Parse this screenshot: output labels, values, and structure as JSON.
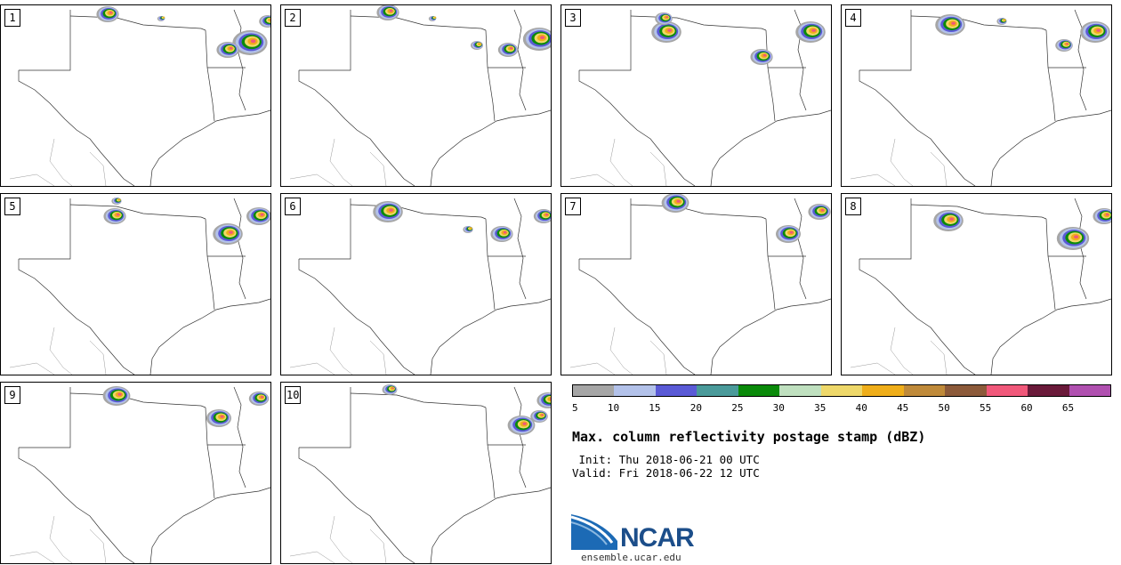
{
  "panels": [
    {
      "label": "1"
    },
    {
      "label": "2"
    },
    {
      "label": "3"
    },
    {
      "label": "4"
    },
    {
      "label": "5"
    },
    {
      "label": "6"
    },
    {
      "label": "7"
    },
    {
      "label": "8"
    },
    {
      "label": "9"
    },
    {
      "label": "10"
    }
  ],
  "colorbar": {
    "colors": [
      "#a6a6a6",
      "#b3c2ea",
      "#5a5ad6",
      "#4a9a9a",
      "#0a8a0a",
      "#bfe0bf",
      "#eed86a",
      "#efae1a",
      "#bf8a3a",
      "#8c5a3a",
      "#f0587a",
      "#6a1a3a",
      "#b050b0"
    ],
    "ticks": [
      "5",
      "10",
      "15",
      "20",
      "25",
      "30",
      "35",
      "40",
      "45",
      "50",
      "55",
      "60",
      "65"
    ]
  },
  "title": "Max. column reflectivity postage stamp (dBZ)",
  "init_line": " Init: Thu 2018-06-21 00 UTC",
  "valid_line": "Valid: Fri 2018-06-22 12 UTC",
  "logo_text": "NCAR",
  "website": "ensemble.ucar.edu"
}
